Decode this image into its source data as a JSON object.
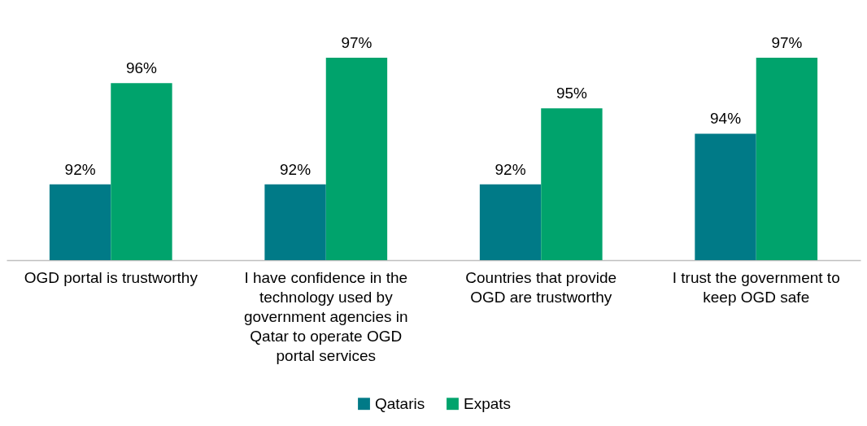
{
  "chart_data": {
    "type": "bar",
    "categories": [
      "OGD portal is trustworthy",
      "I have confidence in the technology used by government agencies in Qatar to operate OGD portal services",
      "Countries that provide OGD are  trustworthy",
      "I trust the government to keep OGD safe"
    ],
    "series": [
      {
        "name": "Qataris",
        "color": "#007a87",
        "values": [
          92,
          92,
          92,
          94
        ],
        "value_labels": [
          "92%",
          "92%",
          "92%",
          "94%"
        ]
      },
      {
        "name": "Expats",
        "color": "#00a36c",
        "values": [
          96,
          97,
          95,
          97
        ],
        "value_labels": [
          "96%",
          "97%",
          "95%",
          "97%"
        ]
      }
    ],
    "ylim": [
      89,
      97
    ],
    "legend": "bottom"
  }
}
